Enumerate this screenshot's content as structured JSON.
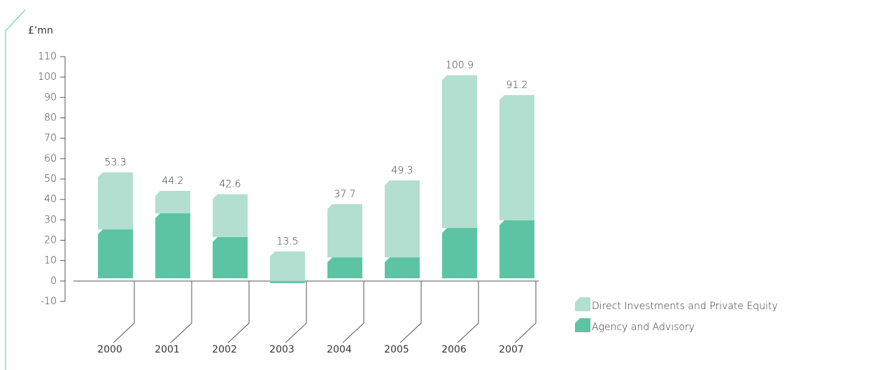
{
  "chart_data": {
    "type": "stacked_bar",
    "unit_label": "£’mn",
    "categories": [
      "2000",
      "2001",
      "2002",
      "2003",
      "2004",
      "2005",
      "2006",
      "2007"
    ],
    "series": [
      {
        "name": "Agency and Advisory",
        "color": "#5cc4a4",
        "values": [
          25.3,
          33.2,
          21.6,
          -1.0,
          11.6,
          11.6,
          26.0,
          29.8
        ]
      },
      {
        "name": "Direct Investments and Private Equity",
        "color": "#b2dfd0",
        "values": [
          28.0,
          11.0,
          21.0,
          14.5,
          26.1,
          37.7,
          74.9,
          61.4
        ]
      }
    ],
    "totals": [
      53.3,
      44.2,
      42.6,
      13.5,
      37.7,
      49.3,
      100.9,
      91.2
    ],
    "ylim": [
      -10,
      110
    ],
    "yticks": [
      -10,
      0,
      10,
      20,
      30,
      40,
      50,
      60,
      70,
      80,
      90,
      100,
      110
    ],
    "legend": "lower right"
  }
}
